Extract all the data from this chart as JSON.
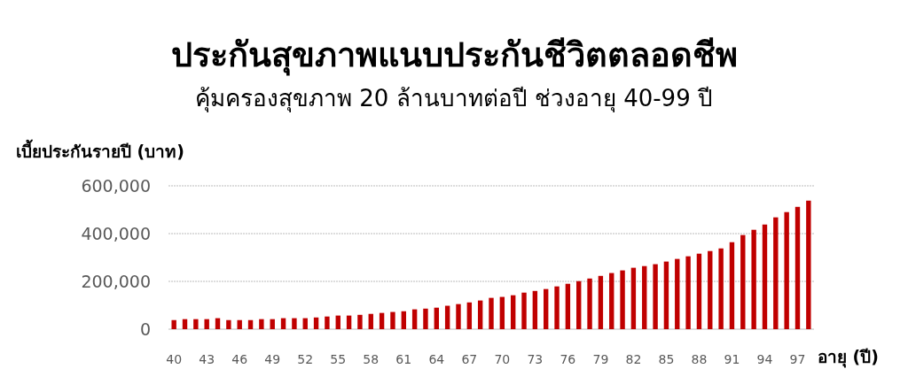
{
  "chart_data": {
    "type": "bar",
    "title": "ประกันสุขภาพแนบประกันชีวิตตลอดชีพ",
    "subtitle": "คุ้มครองสุขภาพ 20 ล้านบาทต่อปี ช่วงอายุ 40-99 ปี",
    "ylabel": "เบี้ยประกันรายปี (บาท)",
    "xlabel": "อายุ (ปี)",
    "categories": [
      "40",
      null,
      null,
      "43",
      null,
      null,
      "46",
      null,
      null,
      "49",
      null,
      null,
      "52",
      null,
      null,
      "55",
      null,
      null,
      "58",
      null,
      null,
      "61",
      null,
      null,
      "64",
      null,
      null,
      "67",
      null,
      null,
      "70",
      null,
      null,
      "73",
      null,
      null,
      "76",
      null,
      null,
      "79",
      null,
      null,
      "82",
      null,
      null,
      "85",
      null,
      null,
      "88",
      null,
      null,
      "91",
      null,
      null,
      "94",
      null,
      null,
      "97",
      null
    ],
    "values": [
      38000,
      42000,
      42000,
      42000,
      46000,
      38000,
      38000,
      38000,
      42000,
      42000,
      46000,
      46000,
      46000,
      49000,
      53000,
      57000,
      57000,
      60000,
      64000,
      68000,
      72000,
      75000,
      83000,
      86000,
      90000,
      98000,
      105000,
      112000,
      120000,
      131000,
      135000,
      142000,
      153000,
      160000,
      168000,
      179000,
      190000,
      201000,
      212000,
      223000,
      235000,
      246000,
      257000,
      264000,
      272000,
      283000,
      294000,
      305000,
      316000,
      327000,
      338000,
      364000,
      394000,
      416000,
      438000,
      468000,
      490000,
      512000,
      538000
    ],
    "color": "#c00000",
    "ylim": [
      0,
      600000
    ],
    "yticks": [
      {
        "value": 0,
        "label": "0"
      },
      {
        "value": 200000,
        "label": "200,000"
      },
      {
        "value": 400000,
        "label": "400,000"
      },
      {
        "value": 600000,
        "label": "600,000"
      }
    ],
    "grid": "y"
  }
}
